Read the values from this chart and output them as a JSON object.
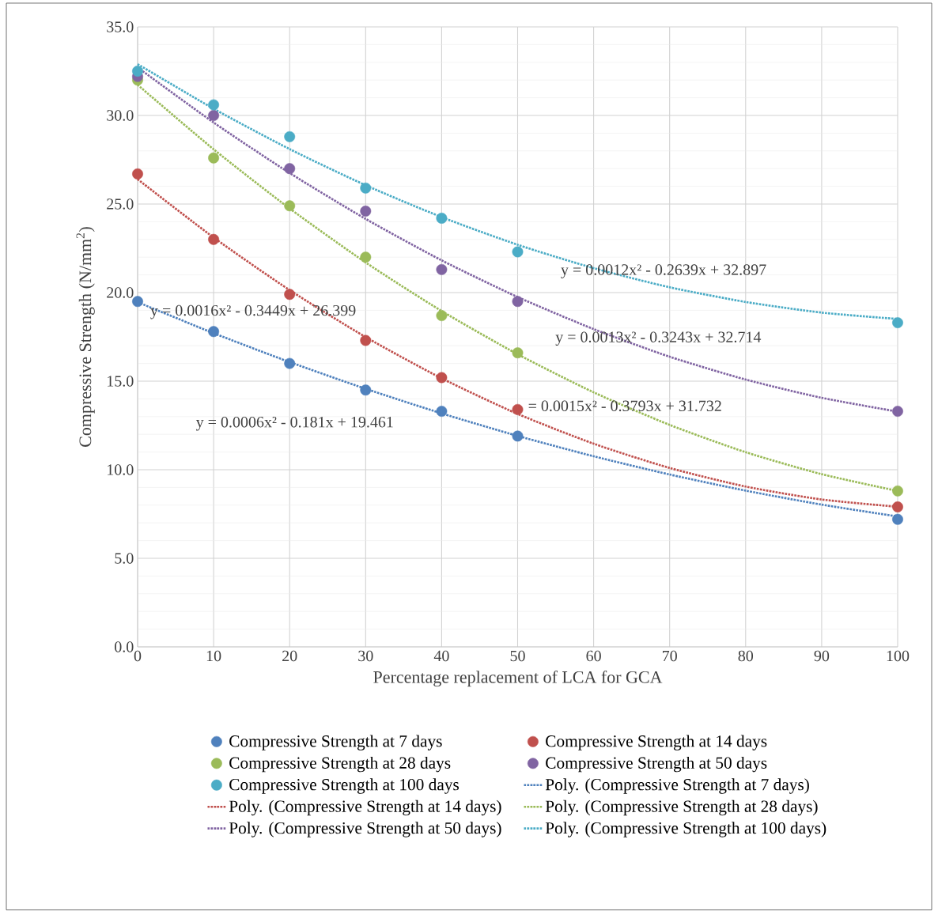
{
  "chart_data": {
    "type": "scatter",
    "xlabel": "Percentage replacement of LCA for GCA",
    "ylabel": "Compressive Strength (N/mm$^{2}$)",
    "x": [
      0,
      10,
      20,
      30,
      40,
      50,
      100
    ],
    "xlim": [
      0,
      100
    ],
    "xticks": [
      0,
      10,
      20,
      30,
      40,
      50,
      60,
      70,
      80,
      90,
      100
    ],
    "ylim": [
      0,
      35
    ],
    "yticks": [
      {
        "value": 0,
        "label": "0.0"
      },
      {
        "value": 5,
        "label": "5.0"
      },
      {
        "value": 10,
        "label": "10.0"
      },
      {
        "value": 15,
        "label": "15.0"
      },
      {
        "value": 20,
        "label": "20.0"
      },
      {
        "value": 25,
        "label": "25.0"
      },
      {
        "value": 30,
        "label": "30.0"
      },
      {
        "value": 35,
        "label": "35.0"
      }
    ],
    "grid": true,
    "legend": "bottom",
    "series": [
      {
        "name": "Compressive Strength at 7 days",
        "marker": "circle",
        "color": "#4f81bd",
        "values": [
          19.5,
          17.8,
          16.0,
          14.5,
          13.3,
          11.9,
          7.2
        ]
      },
      {
        "name": "Compressive Strength at 14 days",
        "marker": "circle",
        "color": "#c0504d",
        "values": [
          26.7,
          23.0,
          19.9,
          17.3,
          15.2,
          13.4,
          7.9
        ]
      },
      {
        "name": "Compressive Strength at 28 days",
        "marker": "circle",
        "color": "#9bbb59",
        "values": [
          32.0,
          27.6,
          24.9,
          22.0,
          18.7,
          16.6,
          8.8
        ]
      },
      {
        "name": "Compressive Strength at 50 days",
        "marker": "circle",
        "color": "#8064a2",
        "values": [
          32.2,
          30.0,
          27.0,
          24.6,
          21.3,
          19.5,
          13.3
        ]
      },
      {
        "name": "Compressive Strength at 100 days",
        "marker": "circle",
        "color": "#4bacc6",
        "values": [
          32.5,
          30.6,
          28.8,
          25.9,
          24.2,
          22.3,
          18.3
        ]
      },
      {
        "name": "Poly. (Compressive Strength at 7 days)",
        "type": "line",
        "line_style": "dotted",
        "marker": "none",
        "color": "#4f81bd",
        "x": [
          0,
          10,
          20,
          30,
          40,
          50,
          60,
          70,
          80,
          90,
          100
        ],
        "values": [
          19.46,
          17.71,
          16.08,
          14.57,
          13.18,
          11.91,
          10.76,
          9.73,
          8.82,
          8.03,
          7.36
        ]
      },
      {
        "name": "Poly. (Compressive Strength at 14 days)",
        "type": "line",
        "line_style": "dotted",
        "marker": "none",
        "color": "#c0504d",
        "x": [
          0,
          10,
          20,
          30,
          40,
          50,
          60,
          70,
          80,
          90,
          100
        ],
        "values": [
          26.4,
          23.11,
          20.14,
          17.49,
          15.16,
          13.15,
          11.47,
          10.1,
          9.05,
          8.32,
          7.91
        ]
      },
      {
        "name": "Poly. (Compressive Strength at 28 days)",
        "type": "line",
        "line_style": "dotted",
        "marker": "none",
        "color": "#9bbb59",
        "x": [
          0,
          10,
          20,
          30,
          40,
          50,
          60,
          70,
          80,
          90,
          100
        ],
        "values": [
          31.73,
          28.09,
          24.75,
          21.7,
          18.96,
          16.52,
          14.37,
          12.53,
          10.99,
          9.75,
          8.8
        ]
      },
      {
        "name": "Poly. (Compressive Strength at 50 days)",
        "type": "line",
        "line_style": "dotted",
        "marker": "none",
        "color": "#8064a2",
        "x": [
          0,
          10,
          20,
          30,
          40,
          50,
          60,
          70,
          80,
          90,
          100
        ],
        "values": [
          32.71,
          29.6,
          26.75,
          24.16,
          21.82,
          19.75,
          17.94,
          16.38,
          15.09,
          14.06,
          13.28
        ]
      },
      {
        "name": "Poly. (Compressive Strength at 100 days)",
        "type": "line",
        "line_style": "dotted",
        "marker": "none",
        "color": "#4bacc6",
        "x": [
          0,
          10,
          20,
          30,
          40,
          50,
          60,
          70,
          80,
          90,
          100
        ],
        "values": [
          32.9,
          30.38,
          28.1,
          26.06,
          24.26,
          22.7,
          21.38,
          20.3,
          19.47,
          18.87,
          18.51
        ]
      }
    ],
    "annotations": [
      "y = 0.0006x² - 0.181x + 19.461",
      "y = 0.0016x² - 0.3449x + 26.399",
      "= 0.0015x² - 0.3793x + 31.732",
      "y = 0.0013x² - 0.3243x + 32.714",
      "y = 0.0012x² - 0.2639x + 32.897"
    ]
  }
}
